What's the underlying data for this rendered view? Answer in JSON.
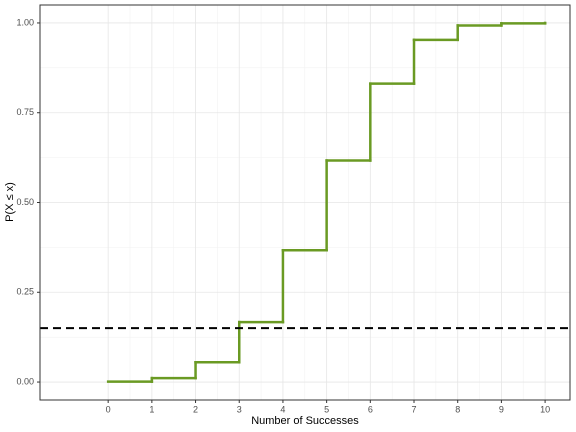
{
  "chart_data": {
    "type": "step",
    "x_label": "Number of Successes",
    "y_label": "P(X ≤ x)",
    "x": [
      0,
      1,
      2,
      3,
      4,
      5,
      6,
      7,
      8,
      9,
      10
    ],
    "values": [
      0.001,
      0.011,
      0.055,
      0.167,
      0.367,
      0.617,
      0.831,
      0.953,
      0.993,
      0.999,
      1.0
    ],
    "color": "#6a9a23",
    "hline": 0.15,
    "xlim": [
      -1.56,
      10.57
    ],
    "ylim": [
      -0.05,
      1.05
    ],
    "xticks": [
      0,
      1,
      2,
      3,
      4,
      5,
      6,
      7,
      8,
      9,
      10
    ],
    "yticks": [
      {
        "value": 0,
        "label": "0.00"
      },
      {
        "value": 0.25,
        "label": "0.25"
      },
      {
        "value": 0.5,
        "label": "0.50"
      },
      {
        "value": 0.75,
        "label": "0.75"
      },
      {
        "value": 1,
        "label": "1.00"
      }
    ],
    "grid": true
  }
}
